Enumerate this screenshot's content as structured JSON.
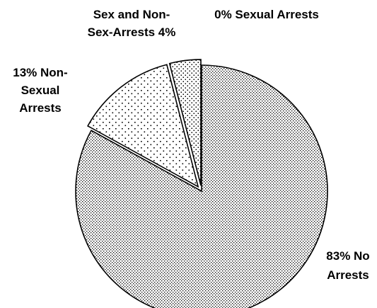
{
  "chart_data": {
    "type": "pie",
    "slices": [
      {
        "name": "No Arrests",
        "value": 83,
        "label_lines": [
          "83% No",
          "Arrests"
        ],
        "pattern": "dense-dots",
        "exploded": false
      },
      {
        "name": "Non-Sexual Arrests",
        "value": 13,
        "label_lines": [
          "13% Non-",
          "Sexual",
          "Arrests"
        ],
        "pattern": "sparse-dots",
        "exploded": true
      },
      {
        "name": "Sex and Non-Sex-Arrests",
        "value": 4,
        "label_lines": [
          "Sex and Non-",
          "Sex-Arrests 4%"
        ],
        "pattern": "medium-dots",
        "exploded": true
      },
      {
        "name": "Sexual Arrests",
        "value": 0,
        "label_lines": [
          "0% Sexual Arrests"
        ],
        "pattern": "none",
        "exploded": false
      }
    ],
    "start_angle_deg": 0,
    "direction": "clockwise",
    "legend": "none",
    "colors": {
      "fill": "#ffffff",
      "stroke": "#000000",
      "dots": "#000000"
    }
  }
}
